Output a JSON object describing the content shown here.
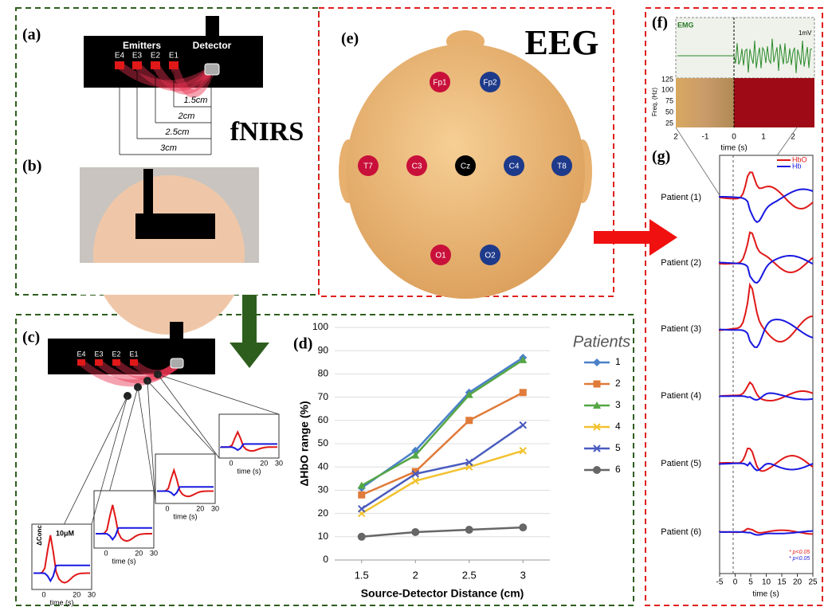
{
  "panels": {
    "a": {
      "label": "(a)",
      "emitters": "Emitters",
      "detector": "Detector",
      "sources": [
        "E4",
        "E3",
        "E2",
        "E1"
      ],
      "distances": [
        "1.5cm",
        "2cm",
        "2.5cm",
        "3cm"
      ],
      "title": "fNIRS"
    },
    "b": {
      "label": "(b)"
    },
    "c": {
      "label": "(c)",
      "sources": [
        "E4",
        "E3",
        "E2",
        "E1"
      ],
      "inset_xticks": [
        "0",
        "20",
        "30"
      ],
      "xlabel": "time (s)",
      "ylabel": "ΔConc",
      "scale": "10μM"
    },
    "e": {
      "label": "(e)",
      "title": "EEG",
      "electrodes": [
        "Fp1",
        "Fp2",
        "T7",
        "C3",
        "Cz",
        "C4",
        "T8",
        "O1",
        "O2"
      ]
    },
    "f": {
      "label": "(f)",
      "emg": "EMG",
      "scale": "1mV",
      "ylabel": "Freq. (Hz)",
      "yticks": [
        "125",
        "100",
        "75",
        "50",
        "25"
      ],
      "xticks": [
        "2",
        "-1",
        "0",
        "1",
        "2"
      ],
      "xlabel": "time (s)"
    },
    "g": {
      "label": "(g)",
      "legend": [
        "HbO",
        "Hb"
      ],
      "patients": [
        "Patient (1)",
        "Patient (2)",
        "Patient (3)",
        "Patient (4)",
        "Patient (5)",
        "Patient (6)"
      ],
      "xticks": [
        "-5",
        "0",
        "5",
        "10",
        "15",
        "20",
        "25"
      ],
      "xlabel": "time (s)",
      "notes": [
        "* p<0.05",
        "* p<0.05"
      ]
    }
  },
  "chart_data": {
    "type": "line",
    "panel_label": "(d)",
    "x_label": "Source-Detector Distance (cm)",
    "y_label": "ΔHbO range (%)",
    "legend_title": "Patients",
    "x": [
      1.5,
      2,
      2.5,
      3
    ],
    "xlim": [
      1.25,
      3.25
    ],
    "xticks": [
      1.5,
      2,
      2.5,
      3
    ],
    "ylim": [
      0,
      100
    ],
    "yticks": [
      0,
      10,
      20,
      30,
      40,
      50,
      60,
      70,
      80,
      90,
      100
    ],
    "grid": true,
    "series": [
      {
        "name": "1",
        "color": "#4a80c8",
        "marker": "diamond",
        "values": [
          31,
          47,
          72,
          87
        ]
      },
      {
        "name": "2",
        "color": "#e07b39",
        "marker": "square",
        "values": [
          28,
          38,
          60,
          72
        ]
      },
      {
        "name": "3",
        "color": "#55a645",
        "marker": "triangle",
        "values": [
          32,
          45,
          71,
          86
        ]
      },
      {
        "name": "4",
        "color": "#f2c230",
        "marker": "x",
        "values": [
          20,
          34,
          40,
          47
        ]
      },
      {
        "name": "5",
        "color": "#4a5bbf",
        "marker": "x",
        "values": [
          22,
          37,
          42,
          58
        ]
      },
      {
        "name": "6",
        "color": "#666666",
        "marker": "circle",
        "values": [
          10,
          12,
          13,
          14
        ]
      }
    ]
  }
}
